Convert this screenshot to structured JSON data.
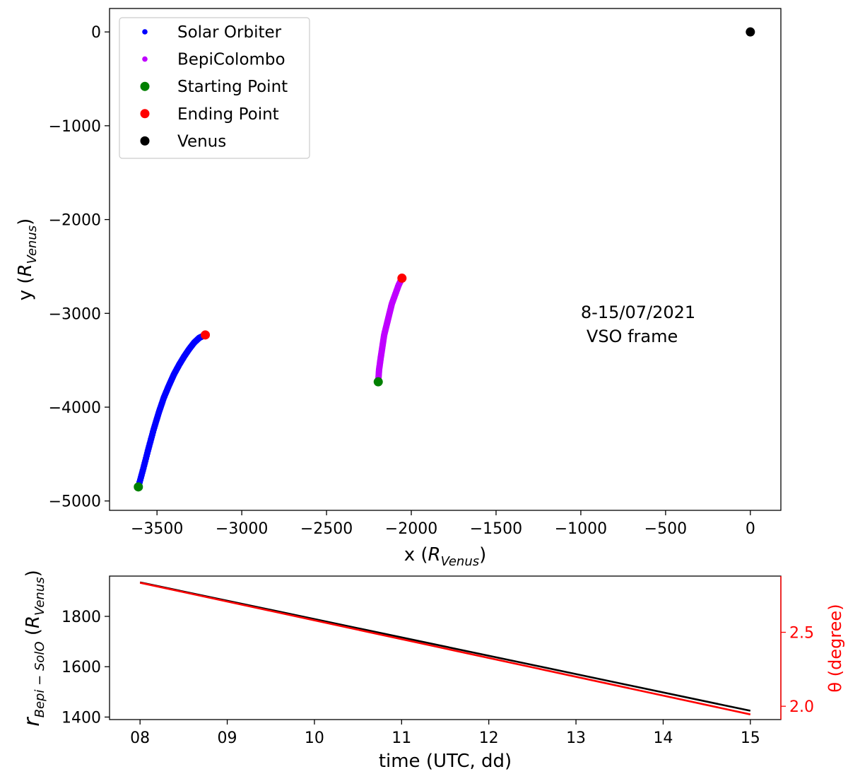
{
  "chart_data": [
    {
      "type": "scatter",
      "xlabel": {
        "main": "x (",
        "var": "R",
        "sub": "Venus",
        "close": ")"
      },
      "ylabel": {
        "main": "y (",
        "var": "R",
        "sub": "Venus",
        "close": ")"
      },
      "xlim": [
        -3780,
        180
      ],
      "ylim": [
        -5100,
        250
      ],
      "xticks": [
        -3500,
        -3000,
        -2500,
        -2000,
        -1500,
        -1000,
        -500,
        0
      ],
      "yticks": [
        0,
        -1000,
        -2000,
        -3000,
        -4000,
        -5000
      ],
      "xtick_labels": [
        "−3500",
        "−3000",
        "−2500",
        "−2000",
        "−1500",
        "−1000",
        "−500",
        "0"
      ],
      "ytick_labels": [
        "0",
        "−1000",
        "−2000",
        "−3000",
        "−4000",
        "−5000"
      ],
      "annotation": [
        "8-15/07/2021",
        "VSO frame"
      ],
      "annotation_pos": [
        -1000,
        -3050
      ],
      "legend": {
        "placement": "top-left",
        "entries": [
          {
            "label": "Solar Orbiter",
            "color": "#0000ff",
            "marker": "small-dot"
          },
          {
            "label": "BepiColombo",
            "color": "#bf00ff",
            "marker": "small-dot"
          },
          {
            "label": "Starting Point",
            "color": "#008000",
            "marker": "dot"
          },
          {
            "label": "Ending Point",
            "color": "#ff0000",
            "marker": "dot"
          },
          {
            "label": "Venus",
            "color": "#000000",
            "marker": "dot"
          }
        ]
      },
      "series": [
        {
          "name": "Solar Orbiter",
          "color": "#0000ff",
          "x": [
            -3610,
            -3580,
            -3550,
            -3520,
            -3490,
            -3460,
            -3430,
            -3400,
            -3370,
            -3340,
            -3310,
            -3280,
            -3250,
            -3215
          ],
          "y": [
            -4850,
            -4650,
            -4440,
            -4240,
            -4060,
            -3900,
            -3770,
            -3650,
            -3550,
            -3460,
            -3380,
            -3310,
            -3260,
            -3230
          ]
        },
        {
          "name": "BepiColombo",
          "color": "#bf00ff",
          "x": [
            -2195,
            -2190,
            -2180,
            -2170,
            -2160,
            -2145,
            -2130,
            -2115,
            -2095,
            -2075,
            -2055
          ],
          "y": [
            -3730,
            -3600,
            -3470,
            -3350,
            -3230,
            -3120,
            -3010,
            -2900,
            -2800,
            -2700,
            -2625
          ]
        },
        {
          "name": "Starting Point",
          "color": "#008000",
          "x": [
            -3610,
            -2195
          ],
          "y": [
            -4850,
            -3730
          ]
        },
        {
          "name": "Ending Point",
          "color": "#ff0000",
          "x": [
            -3215,
            -2055
          ],
          "y": [
            -3230,
            -2625
          ]
        },
        {
          "name": "Venus",
          "color": "#000000",
          "x": [
            0
          ],
          "y": [
            0
          ]
        }
      ]
    },
    {
      "type": "line",
      "xlabel": "time (UTC, dd)",
      "ylabel": {
        "var": "r",
        "sub": "Bepi − SolO",
        "open": " (",
        "unit": "R",
        "unit_sub": "Venus",
        "close": ")"
      },
      "ylabel_right": "θ (degree)",
      "xlim": [
        7.65,
        15.35
      ],
      "ylim": [
        1390,
        1960
      ],
      "ylim_right": [
        1.91,
        2.88
      ],
      "xticks": [
        8,
        9,
        10,
        11,
        12,
        13,
        14,
        15
      ],
      "xtick_labels": [
        "08",
        "09",
        "10",
        "11",
        "12",
        "13",
        "14",
        "15"
      ],
      "yticks": [
        1400,
        1600,
        1800
      ],
      "ytick_labels": [
        "1400",
        "1600",
        "1800"
      ],
      "yticks_right": [
        2.0,
        2.5
      ],
      "ytick_labels_right": [
        "2.0",
        "2.5"
      ],
      "right_axis_color": "#ff0000",
      "series": [
        {
          "color": "#000000",
          "axis": "left",
          "x": [
            8,
            15
          ],
          "y": [
            1935,
            1425
          ]
        },
        {
          "color": "#ff0000",
          "axis": "right",
          "x": [
            8,
            15
          ],
          "y": [
            2.835,
            1.945
          ]
        }
      ]
    }
  ]
}
